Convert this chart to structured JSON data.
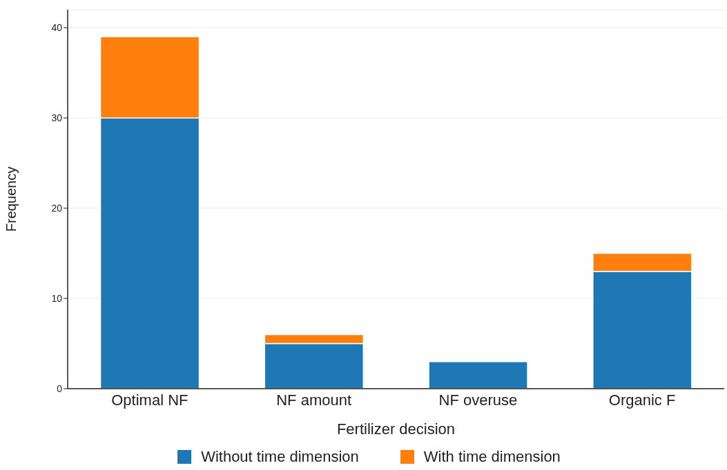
{
  "chart_data": {
    "type": "bar",
    "stacked": true,
    "xlabel": "Fertilizer decision",
    "ylabel": "Frequency",
    "categories": [
      "Optimal NF",
      "NF amount",
      "NF overuse",
      "Organic F"
    ],
    "series": [
      {
        "name": "Without time dimension",
        "color": "#1f77b4",
        "values": [
          30,
          5,
          3,
          13
        ]
      },
      {
        "name": "With time dimension",
        "color": "#ff7f0e",
        "values": [
          9,
          1,
          0,
          2
        ]
      }
    ],
    "ylim": [
      0,
      42
    ],
    "yticks": [
      0,
      10,
      20,
      30,
      40
    ],
    "grid": "y",
    "legend": "bottom"
  }
}
